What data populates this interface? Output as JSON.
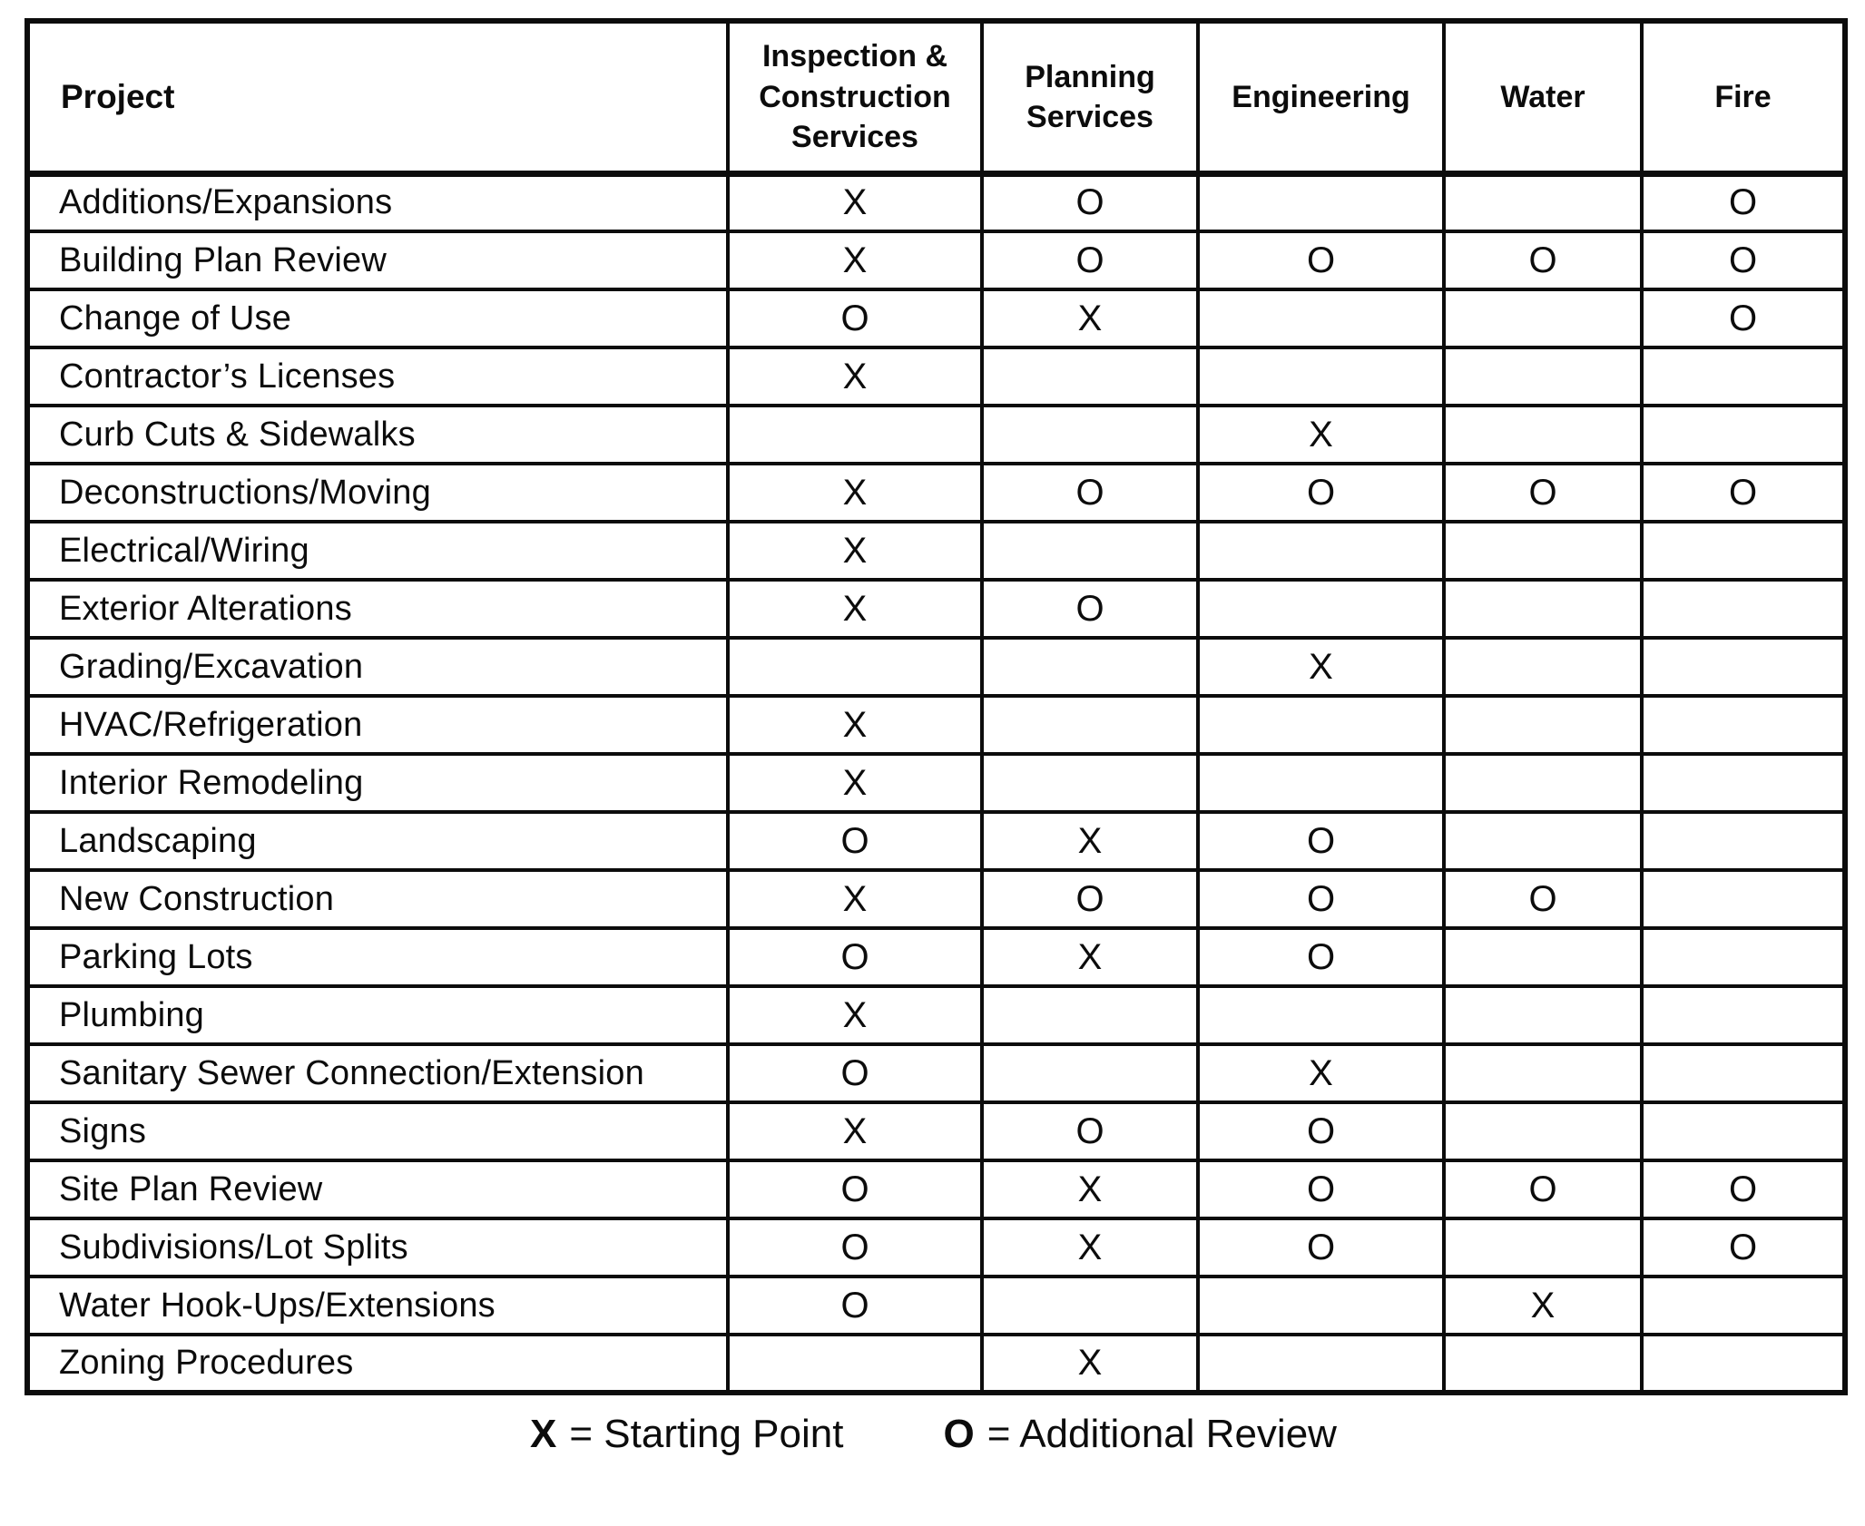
{
  "table": {
    "columns": [
      "Project",
      "Inspection & Construction Services",
      "Planning Services",
      "Engineering",
      "Water",
      "Fire"
    ],
    "rows": [
      {
        "project": "Additions/Expansions",
        "marks": [
          "X",
          "O",
          "",
          "",
          "O"
        ]
      },
      {
        "project": "Building Plan Review",
        "marks": [
          "X",
          "O",
          "O",
          "O",
          "O"
        ]
      },
      {
        "project": "Change of Use",
        "marks": [
          "O",
          "X",
          "",
          "",
          "O"
        ]
      },
      {
        "project": "Contractor’s Licenses",
        "marks": [
          "X",
          "",
          "",
          "",
          ""
        ]
      },
      {
        "project": "Curb Cuts & Sidewalks",
        "marks": [
          "",
          "",
          "X",
          "",
          ""
        ]
      },
      {
        "project": "Deconstructions/Moving",
        "marks": [
          "X",
          "O",
          "O",
          "O",
          "O"
        ]
      },
      {
        "project": "Electrical/Wiring",
        "marks": [
          "X",
          "",
          "",
          "",
          ""
        ]
      },
      {
        "project": "Exterior Alterations",
        "marks": [
          "X",
          "O",
          "",
          "",
          ""
        ]
      },
      {
        "project": "Grading/Excavation",
        "marks": [
          "",
          "",
          "X",
          "",
          ""
        ]
      },
      {
        "project": "HVAC/Refrigeration",
        "marks": [
          "X",
          "",
          "",
          "",
          ""
        ]
      },
      {
        "project": "Interior Remodeling",
        "marks": [
          "X",
          "",
          "",
          "",
          ""
        ]
      },
      {
        "project": "Landscaping",
        "marks": [
          "O",
          "X",
          "O",
          "",
          ""
        ]
      },
      {
        "project": "New Construction",
        "marks": [
          "X",
          "O",
          "O",
          "O",
          ""
        ]
      },
      {
        "project": "Parking Lots",
        "marks": [
          "O",
          "X",
          "O",
          "",
          ""
        ]
      },
      {
        "project": "Plumbing",
        "marks": [
          "X",
          "",
          "",
          "",
          ""
        ]
      },
      {
        "project": "Sanitary Sewer Connection/Extension",
        "marks": [
          "O",
          "",
          "X",
          "",
          ""
        ]
      },
      {
        "project": "Signs",
        "marks": [
          "X",
          "O",
          "O",
          "",
          ""
        ]
      },
      {
        "project": "Site Plan Review",
        "marks": [
          "O",
          "X",
          "O",
          "O",
          "O"
        ]
      },
      {
        "project": "Subdivisions/Lot Splits",
        "marks": [
          "O",
          "X",
          "O",
          "",
          "O"
        ]
      },
      {
        "project": "Water Hook-Ups/Extensions",
        "marks": [
          "O",
          "",
          "",
          "X",
          ""
        ]
      },
      {
        "project": "Zoning Procedures",
        "marks": [
          "",
          "X",
          "",
          "",
          ""
        ]
      }
    ]
  },
  "legend": {
    "x_symbol": "X",
    "x_label": "= Starting Point",
    "o_symbol": "O",
    "o_label": "= Additional Review"
  }
}
